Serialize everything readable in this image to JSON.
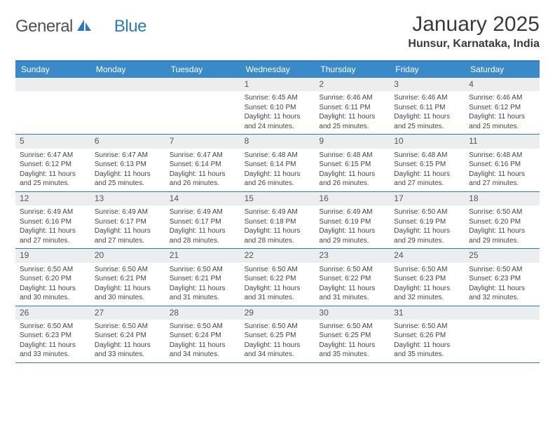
{
  "brand": {
    "text1": "General",
    "text2": "Blue",
    "text_color_1": "#525252",
    "text_color_2": "#2b7bbc",
    "icon_color": "#2b7bbc"
  },
  "title": "January 2025",
  "location": "Hunsur, Karnataka, India",
  "colors": {
    "header_bg": "#3a8ac9",
    "header_text": "#ffffff",
    "border": "#2b7bbc",
    "daynum_bg": "#ebedee",
    "body_text": "#444444",
    "page_bg": "#ffffff"
  },
  "day_headers": [
    "Sunday",
    "Monday",
    "Tuesday",
    "Wednesday",
    "Thursday",
    "Friday",
    "Saturday"
  ],
  "weeks": [
    [
      null,
      null,
      null,
      {
        "n": "1",
        "sr": "6:45 AM",
        "ss": "6:10 PM",
        "dlh": "11",
        "dlm": "24"
      },
      {
        "n": "2",
        "sr": "6:46 AM",
        "ss": "6:11 PM",
        "dlh": "11",
        "dlm": "25"
      },
      {
        "n": "3",
        "sr": "6:46 AM",
        "ss": "6:11 PM",
        "dlh": "11",
        "dlm": "25"
      },
      {
        "n": "4",
        "sr": "6:46 AM",
        "ss": "6:12 PM",
        "dlh": "11",
        "dlm": "25"
      }
    ],
    [
      {
        "n": "5",
        "sr": "6:47 AM",
        "ss": "6:12 PM",
        "dlh": "11",
        "dlm": "25"
      },
      {
        "n": "6",
        "sr": "6:47 AM",
        "ss": "6:13 PM",
        "dlh": "11",
        "dlm": "25"
      },
      {
        "n": "7",
        "sr": "6:47 AM",
        "ss": "6:14 PM",
        "dlh": "11",
        "dlm": "26"
      },
      {
        "n": "8",
        "sr": "6:48 AM",
        "ss": "6:14 PM",
        "dlh": "11",
        "dlm": "26"
      },
      {
        "n": "9",
        "sr": "6:48 AM",
        "ss": "6:15 PM",
        "dlh": "11",
        "dlm": "26"
      },
      {
        "n": "10",
        "sr": "6:48 AM",
        "ss": "6:15 PM",
        "dlh": "11",
        "dlm": "27"
      },
      {
        "n": "11",
        "sr": "6:48 AM",
        "ss": "6:16 PM",
        "dlh": "11",
        "dlm": "27"
      }
    ],
    [
      {
        "n": "12",
        "sr": "6:49 AM",
        "ss": "6:16 PM",
        "dlh": "11",
        "dlm": "27"
      },
      {
        "n": "13",
        "sr": "6:49 AM",
        "ss": "6:17 PM",
        "dlh": "11",
        "dlm": "27"
      },
      {
        "n": "14",
        "sr": "6:49 AM",
        "ss": "6:17 PM",
        "dlh": "11",
        "dlm": "28"
      },
      {
        "n": "15",
        "sr": "6:49 AM",
        "ss": "6:18 PM",
        "dlh": "11",
        "dlm": "28"
      },
      {
        "n": "16",
        "sr": "6:49 AM",
        "ss": "6:19 PM",
        "dlh": "11",
        "dlm": "29"
      },
      {
        "n": "17",
        "sr": "6:50 AM",
        "ss": "6:19 PM",
        "dlh": "11",
        "dlm": "29"
      },
      {
        "n": "18",
        "sr": "6:50 AM",
        "ss": "6:20 PM",
        "dlh": "11",
        "dlm": "29"
      }
    ],
    [
      {
        "n": "19",
        "sr": "6:50 AM",
        "ss": "6:20 PM",
        "dlh": "11",
        "dlm": "30"
      },
      {
        "n": "20",
        "sr": "6:50 AM",
        "ss": "6:21 PM",
        "dlh": "11",
        "dlm": "30"
      },
      {
        "n": "21",
        "sr": "6:50 AM",
        "ss": "6:21 PM",
        "dlh": "11",
        "dlm": "31"
      },
      {
        "n": "22",
        "sr": "6:50 AM",
        "ss": "6:22 PM",
        "dlh": "11",
        "dlm": "31"
      },
      {
        "n": "23",
        "sr": "6:50 AM",
        "ss": "6:22 PM",
        "dlh": "11",
        "dlm": "31"
      },
      {
        "n": "24",
        "sr": "6:50 AM",
        "ss": "6:23 PM",
        "dlh": "11",
        "dlm": "32"
      },
      {
        "n": "25",
        "sr": "6:50 AM",
        "ss": "6:23 PM",
        "dlh": "11",
        "dlm": "32"
      }
    ],
    [
      {
        "n": "26",
        "sr": "6:50 AM",
        "ss": "6:23 PM",
        "dlh": "11",
        "dlm": "33"
      },
      {
        "n": "27",
        "sr": "6:50 AM",
        "ss": "6:24 PM",
        "dlh": "11",
        "dlm": "33"
      },
      {
        "n": "28",
        "sr": "6:50 AM",
        "ss": "6:24 PM",
        "dlh": "11",
        "dlm": "34"
      },
      {
        "n": "29",
        "sr": "6:50 AM",
        "ss": "6:25 PM",
        "dlh": "11",
        "dlm": "34"
      },
      {
        "n": "30",
        "sr": "6:50 AM",
        "ss": "6:25 PM",
        "dlh": "11",
        "dlm": "35"
      },
      {
        "n": "31",
        "sr": "6:50 AM",
        "ss": "6:26 PM",
        "dlh": "11",
        "dlm": "35"
      },
      null
    ]
  ],
  "labels": {
    "sunrise": "Sunrise:",
    "sunset": "Sunset:",
    "daylight_prefix": "Daylight:",
    "hours_word": "hours",
    "and_word": "and",
    "minutes_word": "minutes."
  },
  "typography": {
    "title_fontsize": 30,
    "location_fontsize": 16,
    "dayheader_fontsize": 12,
    "daynum_fontsize": 12,
    "content_fontsize": 10
  }
}
